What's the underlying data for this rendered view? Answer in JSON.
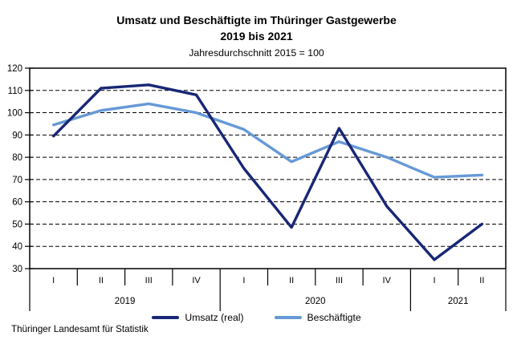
{
  "header": {
    "title_line1": "Umsatz und Beschäftigte im Thüringer Gastgewerbe",
    "title_line2": "2019 bis 2021",
    "subtitle": "Jahresdurchschnitt 2015 = 100"
  },
  "chart_data": {
    "type": "line",
    "title": "Umsatz und Beschäftigte im Thüringer Gastgewerbe 2019 bis 2021",
    "subtitle": "Jahresdurchschnitt 2015 = 100",
    "x_groups": [
      {
        "year": "2019",
        "quarters": [
          "I",
          "II",
          "III",
          "IV"
        ]
      },
      {
        "year": "2020",
        "quarters": [
          "I",
          "II",
          "III",
          "IV"
        ]
      },
      {
        "year": "2021",
        "quarters": [
          "I",
          "II"
        ]
      }
    ],
    "categories": [
      "2019 I",
      "2019 II",
      "2019 III",
      "2019 IV",
      "2020 I",
      "2020 II",
      "2020 III",
      "2020 IV",
      "2021 I",
      "2021 II"
    ],
    "series": [
      {
        "name": "Umsatz (real)",
        "color": "#182775",
        "values": [
          89.5,
          111,
          112.5,
          108,
          75,
          48.5,
          93,
          58,
          34,
          50
        ]
      },
      {
        "name": "Beschäftigte",
        "color": "#6699D6",
        "values": [
          94.5,
          101,
          104,
          100,
          92.5,
          78,
          87,
          80,
          71,
          72
        ]
      }
    ],
    "ylim": [
      30,
      120
    ],
    "ytick_step": 10,
    "grid": "horizontal-dashed",
    "legend_position": "bottom",
    "axis_color": "#000000",
    "grid_color": "#000000"
  },
  "footer": {
    "source": "Thüringer Landesamt für Statistik"
  }
}
